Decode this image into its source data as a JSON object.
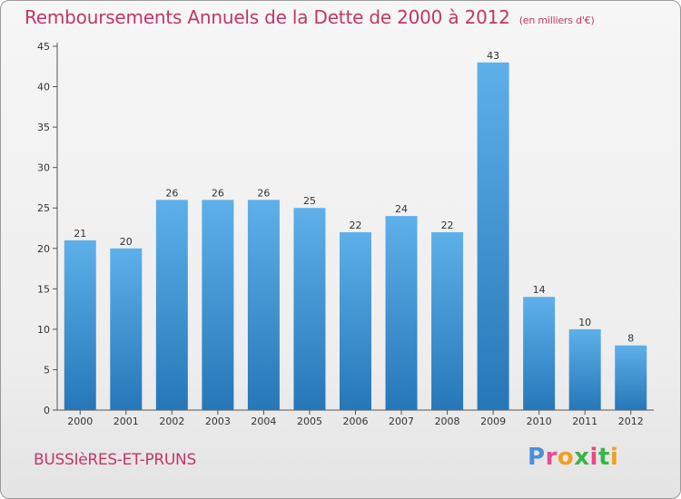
{
  "title": "Remboursements Annuels de la Dette de 2000 à 2012",
  "unit_note": "(en milliers d'€)",
  "town": "BUSSIèRES-ET-PRUNS",
  "logo": {
    "letters": [
      "P",
      "r",
      "o",
      "x",
      "i",
      "t",
      "i"
    ],
    "colors": [
      "#4a90d9",
      "#e94a8a",
      "#f0a020",
      "#3bb34a",
      "#e94a8a",
      "#3bb34a",
      "#f0a020"
    ]
  },
  "chart_data": {
    "type": "bar",
    "categories": [
      "2000",
      "2001",
      "2002",
      "2003",
      "2004",
      "2005",
      "2006",
      "2007",
      "2008",
      "2009",
      "2010",
      "2011",
      "2012"
    ],
    "values": [
      21,
      20,
      26,
      26,
      26,
      25,
      22,
      24,
      22,
      43,
      14,
      10,
      8
    ],
    "title": "Remboursements Annuels de la Dette de 2000 à 2012",
    "xlabel": "",
    "ylabel": "",
    "ylim": [
      0,
      45
    ],
    "yticks": [
      0,
      5,
      10,
      15,
      20,
      25,
      30,
      35,
      40,
      45
    ],
    "grid": false,
    "bar_color_top": "#5eb0ea",
    "bar_color_bottom": "#2577b8"
  }
}
